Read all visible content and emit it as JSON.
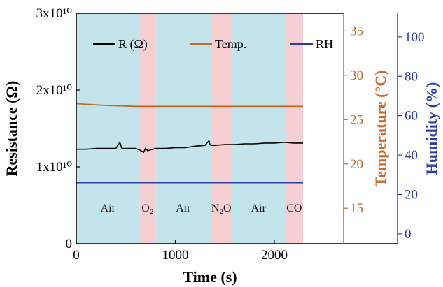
{
  "chart_data": {
    "type": "line",
    "xlabel": "Time (s)",
    "ylabel_left": "Resistance (Ω)",
    "ylabel_right1": "Temperature (°C)",
    "ylabel_right2": "Humidity (%)",
    "xlim": [
      0,
      2700
    ],
    "x_ticks": [
      "0",
      "1000",
      "2000"
    ],
    "x_tick_values": [
      0,
      1000,
      2000
    ],
    "ylim_left": [
      0,
      30000000000.0
    ],
    "y_left_ticks": [
      "0",
      "1x10¹⁰",
      "2x10¹⁰",
      "3x10¹⁰"
    ],
    "y_left_tick_values": [
      0,
      10000000000.0,
      20000000000.0,
      30000000000.0
    ],
    "ylim_temp": [
      11.0,
      37.0
    ],
    "y_temp_ticks": [
      "15",
      "20",
      "25",
      "30",
      "35"
    ],
    "ylim_rh": [
      -5,
      112
    ],
    "y_rh_ticks": [
      "0",
      "20",
      "40",
      "60",
      "80",
      "100"
    ],
    "legend_position": "top",
    "colors": {
      "air": "#c2e4ea",
      "gas": "#f6cfd2",
      "resistance": "#000000",
      "temperature": "#c8692e",
      "humidity": "#2c3e9e",
      "left_axis": "#000000",
      "temp_axis": "#c8692e",
      "rh_axis": "#2c3e9e"
    },
    "regions": [
      {
        "label": "Air",
        "x0": 0,
        "x1": 640,
        "color": "air"
      },
      {
        "label": "O₂",
        "x0": 640,
        "x1": 800,
        "color": "gas"
      },
      {
        "label": "Air",
        "x0": 800,
        "x1": 1360,
        "color": "air"
      },
      {
        "label": "N₂O",
        "x0": 1360,
        "x1": 1570,
        "color": "gas"
      },
      {
        "label": "Air",
        "x0": 1570,
        "x1": 2110,
        "color": "air"
      },
      {
        "label": "CO",
        "x0": 2110,
        "x1": 2290,
        "color": "gas"
      }
    ],
    "series": [
      {
        "name": "R (Ω)",
        "axis": "left",
        "color": "resistance",
        "x": [
          0,
          100,
          200,
          300,
          400,
          440,
          460,
          500,
          600,
          640,
          680,
          700,
          720,
          800,
          900,
          1000,
          1100,
          1200,
          1300,
          1340,
          1350,
          1360,
          1400,
          1500,
          1600,
          1700,
          1800,
          1900,
          2000,
          2100,
          2200,
          2290
        ],
        "values": [
          12300000000.0,
          12300000000.0,
          12400000000.0,
          12400000000.0,
          12400000000.0,
          13200000000.0,
          12400000000.0,
          12400000000.0,
          12400000000.0,
          12200000000.0,
          11900000000.0,
          12400000000.0,
          12100000000.0,
          12400000000.0,
          12400000000.0,
          12500000000.0,
          12500000000.0,
          12700000000.0,
          12800000000.0,
          13400000000.0,
          12900000000.0,
          12800000000.0,
          12800000000.0,
          12900000000.0,
          12900000000.0,
          13000000000.0,
          13000000000.0,
          13100000000.0,
          13100000000.0,
          13200000000.0,
          13100000000.0,
          13100000000.0
        ]
      },
      {
        "name": "Temp.",
        "axis": "temp",
        "color": "temperature",
        "x": [
          0,
          300,
          600,
          900,
          1200,
          1500,
          1800,
          2100,
          2290
        ],
        "values": [
          26.8,
          26.6,
          26.5,
          26.5,
          26.5,
          26.5,
          26.5,
          26.5,
          26.5
        ]
      },
      {
        "name": "RH",
        "axis": "rh",
        "color": "humidity",
        "x": [
          0,
          2290
        ],
        "values": [
          26,
          26
        ]
      }
    ]
  }
}
